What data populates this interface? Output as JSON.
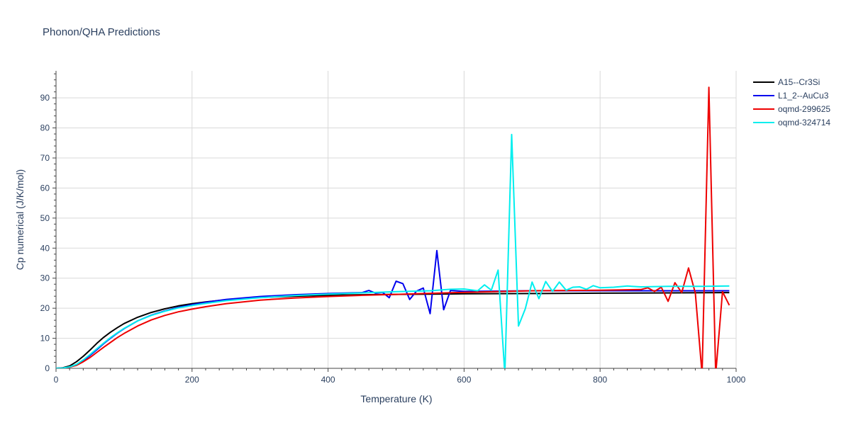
{
  "chart_data": {
    "type": "line",
    "title": "Phonon/QHA Predictions",
    "xlabel": "Temperature (K)",
    "ylabel": "Cp numerical (J/K/mol)",
    "xlim": [
      0,
      1000
    ],
    "ylim": [
      0,
      99
    ],
    "xticks": [
      0,
      200,
      400,
      600,
      800,
      1000
    ],
    "yticks": [
      0,
      10,
      20,
      30,
      40,
      50,
      60,
      70,
      80,
      90
    ],
    "grid": true,
    "legend_position": "top-right",
    "series": [
      {
        "name": "A15--Cr3Si",
        "color": "#000000",
        "x": [
          0,
          10,
          20,
          30,
          40,
          50,
          60,
          70,
          80,
          90,
          100,
          120,
          140,
          160,
          180,
          200,
          220,
          250,
          300,
          350,
          400,
          450,
          500,
          600,
          700,
          800,
          900,
          990
        ],
        "y": [
          0,
          0.2,
          0.8,
          2.2,
          4.0,
          6.1,
          8.3,
          10.3,
          12.0,
          13.5,
          14.9,
          17.0,
          18.6,
          19.8,
          20.8,
          21.5,
          22.1,
          22.8,
          23.6,
          24.0,
          24.3,
          24.5,
          24.6,
          24.8,
          24.9,
          25.0,
          25.1,
          25.2
        ]
      },
      {
        "name": "L1_2--AuCu3",
        "color": "#0000ee",
        "x": [
          0,
          10,
          20,
          30,
          40,
          50,
          60,
          70,
          80,
          90,
          100,
          120,
          140,
          160,
          180,
          200,
          220,
          250,
          300,
          350,
          400,
          450,
          460,
          470,
          480,
          490,
          500,
          510,
          520,
          530,
          540,
          550,
          560,
          570,
          580,
          600,
          650,
          700,
          800,
          900,
          990
        ],
        "y": [
          0,
          0.1,
          0.4,
          1.2,
          2.6,
          4.3,
          6.2,
          8.2,
          10.0,
          11.7,
          13.2,
          15.8,
          17.7,
          19.1,
          20.3,
          21.2,
          22.0,
          22.9,
          23.9,
          24.5,
          24.9,
          25.2,
          25.9,
          25.0,
          25.3,
          23.5,
          29.0,
          28.2,
          22.9,
          25.7,
          26.7,
          18.2,
          39.2,
          19.5,
          25.9,
          25.6,
          25.7,
          25.8,
          25.8,
          25.8,
          25.8
        ]
      },
      {
        "name": "oqmd-299625",
        "color": "#ee0000",
        "x": [
          0,
          10,
          20,
          30,
          40,
          50,
          60,
          70,
          80,
          90,
          100,
          120,
          140,
          160,
          180,
          200,
          220,
          250,
          300,
          350,
          400,
          450,
          500,
          600,
          700,
          800,
          860,
          870,
          880,
          890,
          900,
          910,
          920,
          930,
          940,
          950,
          960,
          970,
          980,
          990
        ],
        "y": [
          0,
          0.1,
          0.4,
          1.0,
          2.2,
          3.6,
          5.3,
          7.0,
          8.6,
          10.2,
          11.6,
          14.1,
          16.1,
          17.6,
          18.8,
          19.7,
          20.5,
          21.5,
          22.7,
          23.4,
          23.9,
          24.3,
          24.6,
          25.3,
          25.8,
          26.0,
          26.2,
          26.8,
          25.6,
          27.0,
          22.3,
          28.5,
          25.2,
          33.4,
          25.0,
          -2.0,
          93.5,
          -2.0,
          25.5,
          21.0
        ]
      },
      {
        "name": "oqmd-324714",
        "color": "#00eeee",
        "x": [
          0,
          10,
          20,
          30,
          40,
          50,
          60,
          70,
          80,
          90,
          100,
          120,
          140,
          160,
          180,
          200,
          220,
          250,
          300,
          350,
          400,
          450,
          500,
          550,
          580,
          600,
          620,
          630,
          640,
          650,
          660,
          670,
          680,
          690,
          700,
          710,
          720,
          730,
          740,
          750,
          760,
          770,
          780,
          790,
          800,
          820,
          840,
          860,
          880,
          900,
          950,
          990
        ],
        "y": [
          0,
          0.1,
          0.5,
          1.3,
          2.8,
          4.6,
          6.5,
          8.4,
          10.2,
          11.8,
          13.3,
          15.8,
          17.6,
          19.0,
          20.1,
          20.9,
          21.6,
          22.5,
          23.5,
          24.2,
          24.7,
          25.1,
          25.5,
          25.8,
          26.3,
          26.4,
          25.8,
          27.8,
          26.0,
          32.7,
          -2.0,
          77.8,
          14.1,
          19.8,
          28.7,
          23.2,
          28.9,
          25.6,
          28.7,
          26.0,
          27.0,
          27.1,
          26.3,
          27.5,
          26.8,
          27.0,
          27.4,
          27.1,
          27.2,
          27.3,
          27.3,
          27.4
        ]
      }
    ]
  }
}
